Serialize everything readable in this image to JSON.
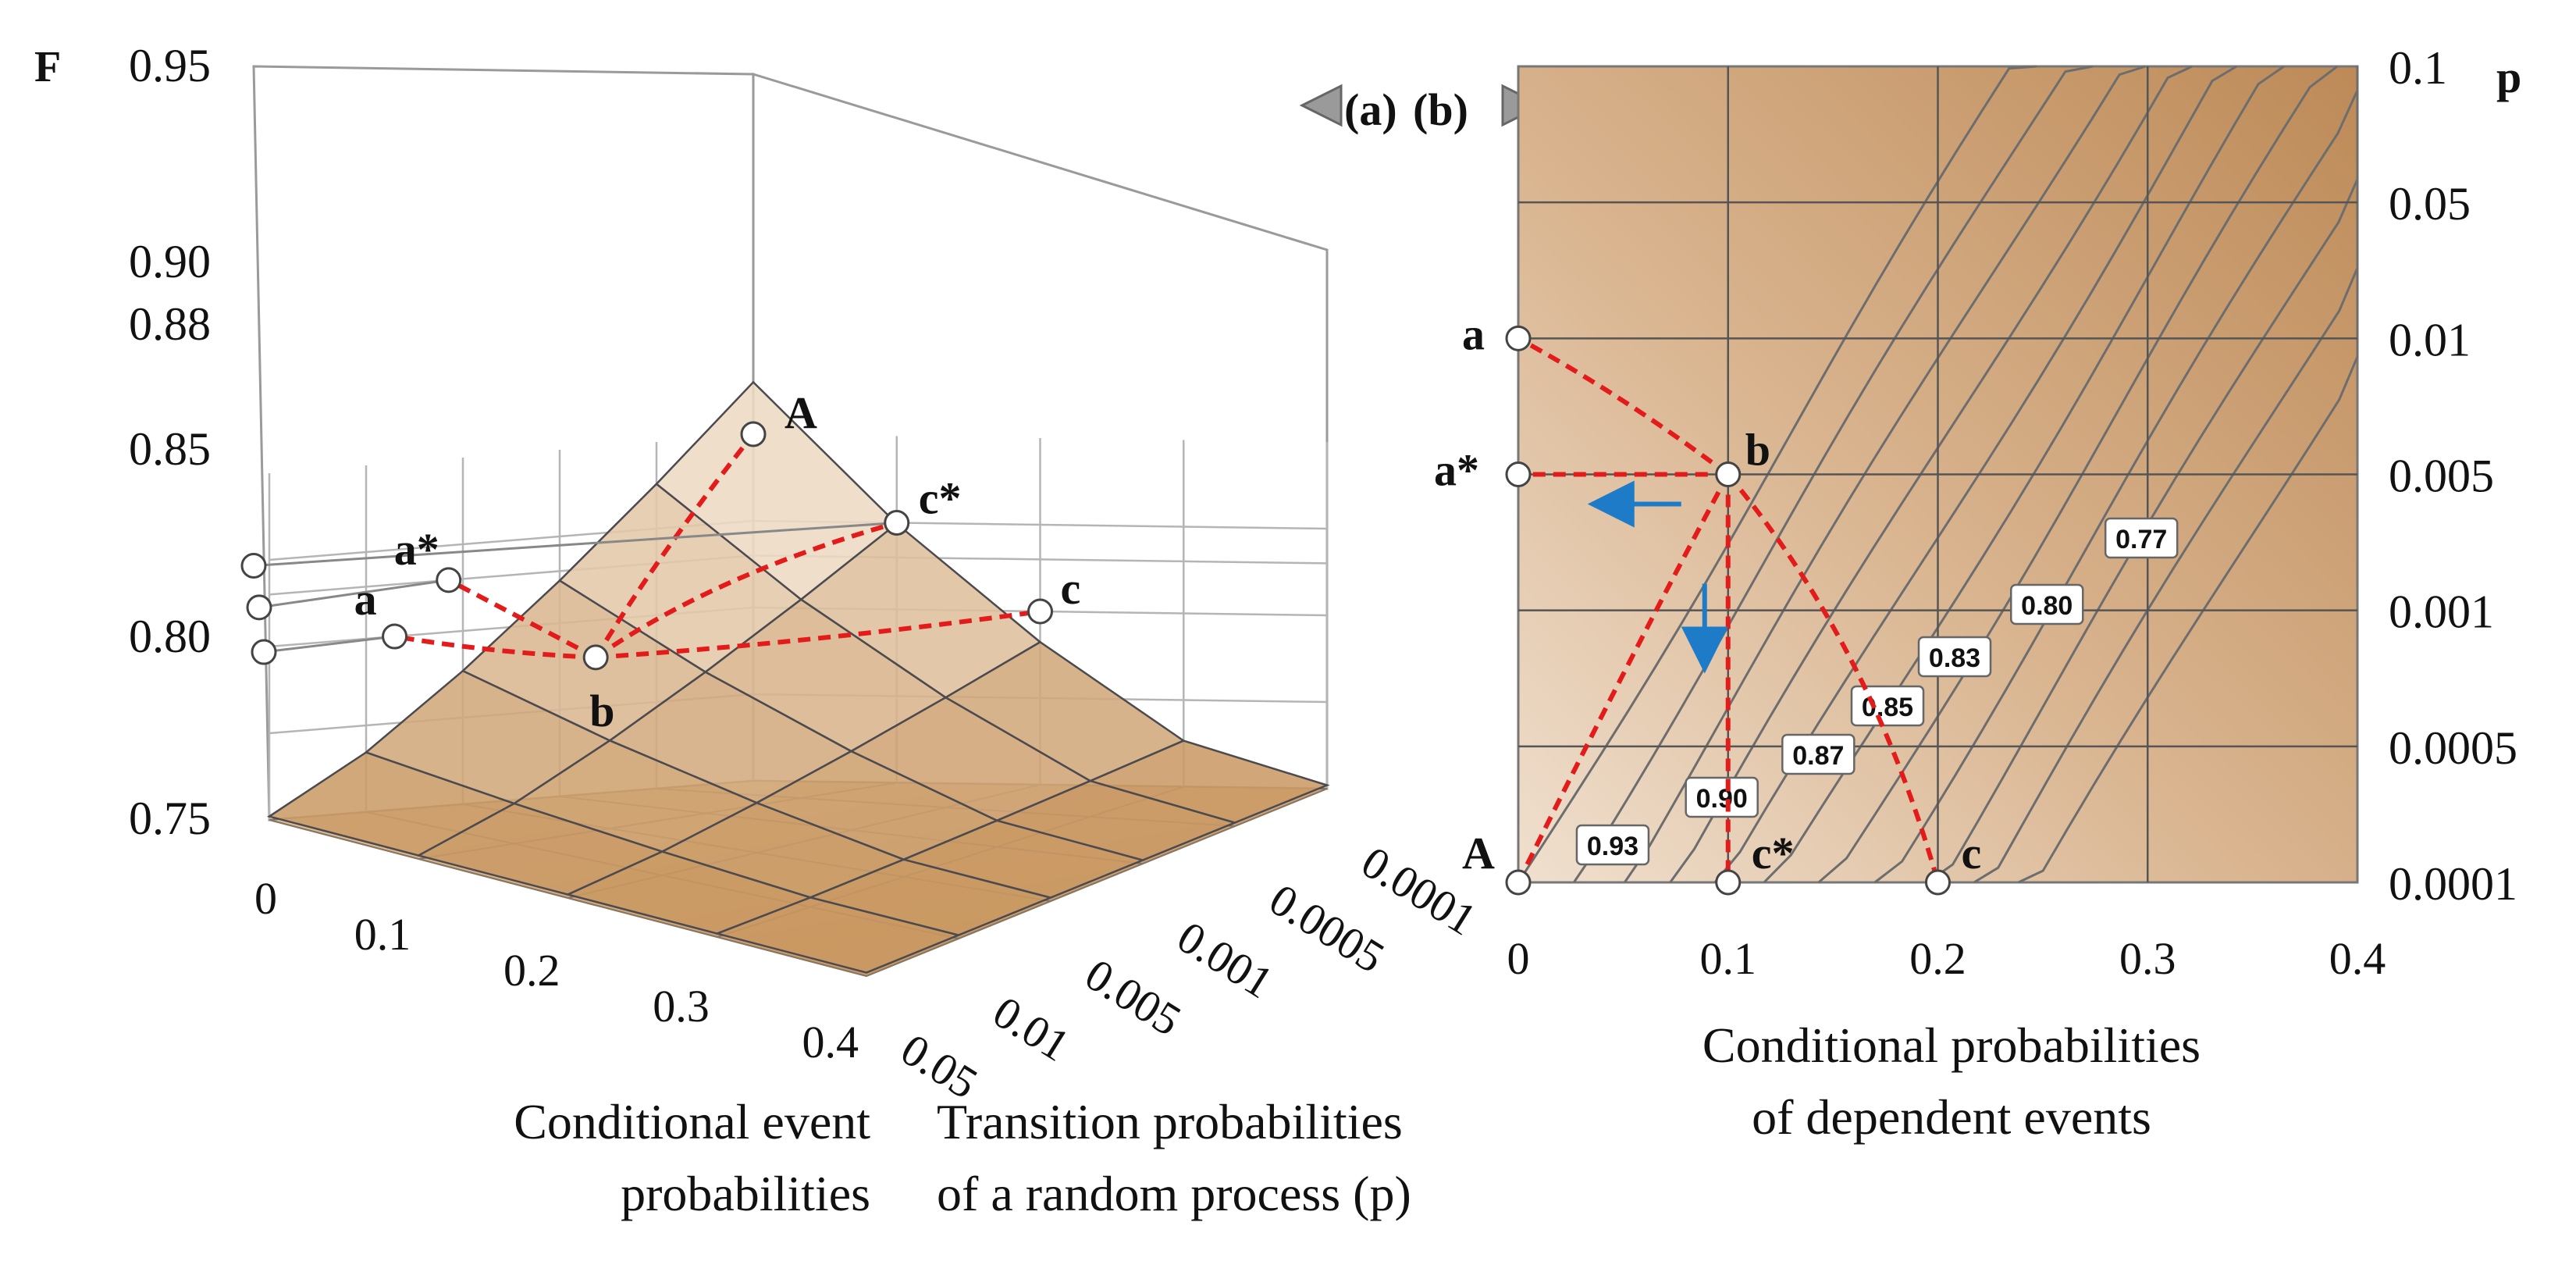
{
  "chart_data": [
    {
      "type": "surface3d",
      "panel": "(a)",
      "zlabel": "F",
      "z_ticks": [
        "0.95",
        "0.90",
        "0.88",
        "0.85",
        "0.80",
        "0.75"
      ],
      "x_axis_label": "Conditional event probabilities",
      "x_ticks": [
        "0",
        "0.1",
        "0.2",
        "0.3",
        "0.4"
      ],
      "y_axis_label": "Transition probabilities of a random process (p)",
      "y_ticks": [
        "0.05",
        "0.01",
        "0.005",
        "0.001",
        "0.0005",
        "0.0001"
      ],
      "points": [
        {
          "name": "A",
          "x": 0,
          "p": 0.0001,
          "F": 0.95
        },
        {
          "name": "c*",
          "x": 0.1,
          "p": 0.0001,
          "F": 0.9
        },
        {
          "name": "a*",
          "x": 0,
          "p": 0.005,
          "F": 0.88
        },
        {
          "name": "a",
          "x": 0,
          "p": 0.01,
          "F": 0.85
        },
        {
          "name": "b",
          "x": 0.1,
          "p": 0.005,
          "F": 0.85
        },
        {
          "name": "c",
          "x": 0.2,
          "p": 0.0001,
          "F": 0.85
        }
      ]
    },
    {
      "type": "contour",
      "panel": "(b)",
      "x_axis_label": "Conditional probabilities of dependent events",
      "x_ticks": [
        "0",
        "0.1",
        "0.2",
        "0.3",
        "0.4"
      ],
      "y_axis_label": "p",
      "y_ticks": [
        "0.1",
        "0.05",
        "0.01",
        "0.005",
        "0.001",
        "0.0005",
        "0.0001"
      ],
      "contour_labels": [
        "0.93",
        "0.90",
        "0.87",
        "0.85",
        "0.83",
        "0.80",
        "0.77"
      ],
      "points": [
        {
          "name": "a",
          "x": 0,
          "p": 0.01
        },
        {
          "name": "a*",
          "x": 0,
          "p": 0.005
        },
        {
          "name": "b",
          "x": 0.1,
          "p": 0.005
        },
        {
          "name": "A",
          "x": 0,
          "p": 0.0001
        },
        {
          "name": "c*",
          "x": 0.1,
          "p": 0.0001
        },
        {
          "name": "c",
          "x": 0.2,
          "p": 0.0001
        }
      ],
      "arrows": [
        "toward-a*",
        "toward-c*"
      ]
    }
  ],
  "nav": {
    "prev_label": "(a)",
    "next_label": "(b)"
  },
  "colors": {
    "surface_light": "#f3e6d6",
    "surface_dark": "#c8965f",
    "path": "#e31b1b",
    "arrow": "#1e7bc8",
    "grid": "#999999"
  }
}
